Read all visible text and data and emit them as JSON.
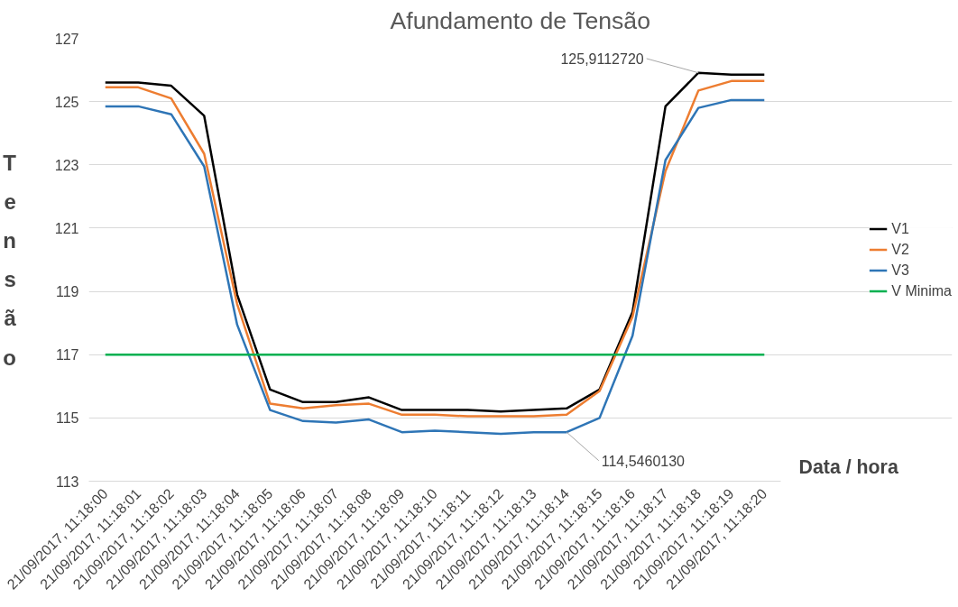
{
  "chart_data": {
    "type": "line",
    "title": "Afundamento de Tensão",
    "xlabel": "Data / hora",
    "ylabel": "Tensão",
    "categories": [
      "21/09/2017, 11:18:00",
      "21/09/2017, 11:18:01",
      "21/09/2017, 11:18:02",
      "21/09/2017, 11:18:03",
      "21/09/2017, 11:18:04",
      "21/09/2017, 11:18:05",
      "21/09/2017, 11:18:06",
      "21/09/2017, 11:18:07",
      "21/09/2017, 11:18:08",
      "21/09/2017, 11:18:09",
      "21/09/2017, 11:18:10",
      "21/09/2017, 11:18:11",
      "21/09/2017, 11:18:12",
      "21/09/2017, 11:18:13",
      "21/09/2017, 11:18:14",
      "21/09/2017, 11:18:15",
      "21/09/2017, 11:18:16",
      "21/09/2017, 11:18:17",
      "21/09/2017, 11:18:18",
      "21/09/2017, 11:18:19",
      "21/09/2017, 11:18:20"
    ],
    "series": [
      {
        "name": "V1",
        "color": "#000000",
        "values": [
          125.6,
          125.6,
          125.5,
          124.55,
          118.9,
          115.9,
          115.5,
          115.5,
          115.65,
          115.25,
          115.25,
          115.25,
          115.2,
          115.25,
          115.3,
          115.9,
          118.35,
          124.85,
          125.91,
          125.85,
          125.85
        ]
      },
      {
        "name": "V2",
        "color": "#ed7d31",
        "values": [
          125.45,
          125.45,
          125.1,
          123.35,
          118.6,
          115.45,
          115.3,
          115.4,
          115.45,
          115.1,
          115.1,
          115.05,
          115.05,
          115.05,
          115.1,
          115.85,
          118.2,
          122.8,
          125.35,
          125.65,
          125.65
        ]
      },
      {
        "name": "V3",
        "color": "#2e75b6",
        "values": [
          124.85,
          124.85,
          124.6,
          122.95,
          117.95,
          115.25,
          114.9,
          114.85,
          114.95,
          114.55,
          114.6,
          114.55,
          114.5,
          114.55,
          114.55,
          115.0,
          117.6,
          123.15,
          124.8,
          125.05,
          125.05
        ]
      },
      {
        "name": "V Minima",
        "color": "#00b050",
        "values": [
          117,
          117,
          117,
          117,
          117,
          117,
          117,
          117,
          117,
          117,
          117,
          117,
          117,
          117,
          117,
          117,
          117,
          117,
          117,
          117,
          117
        ]
      }
    ],
    "ylim": [
      113,
      127
    ],
    "yticks": [
      113,
      115,
      117,
      119,
      121,
      123,
      125,
      127
    ],
    "grid": "y",
    "legend": "right",
    "annotations": [
      {
        "text": "125,9112720",
        "x": "21/09/2017, 11:18:18",
        "y": 125.91
      },
      {
        "text": "114,5460130",
        "x": "21/09/2017, 11:18:14",
        "y": 114.55
      }
    ]
  }
}
